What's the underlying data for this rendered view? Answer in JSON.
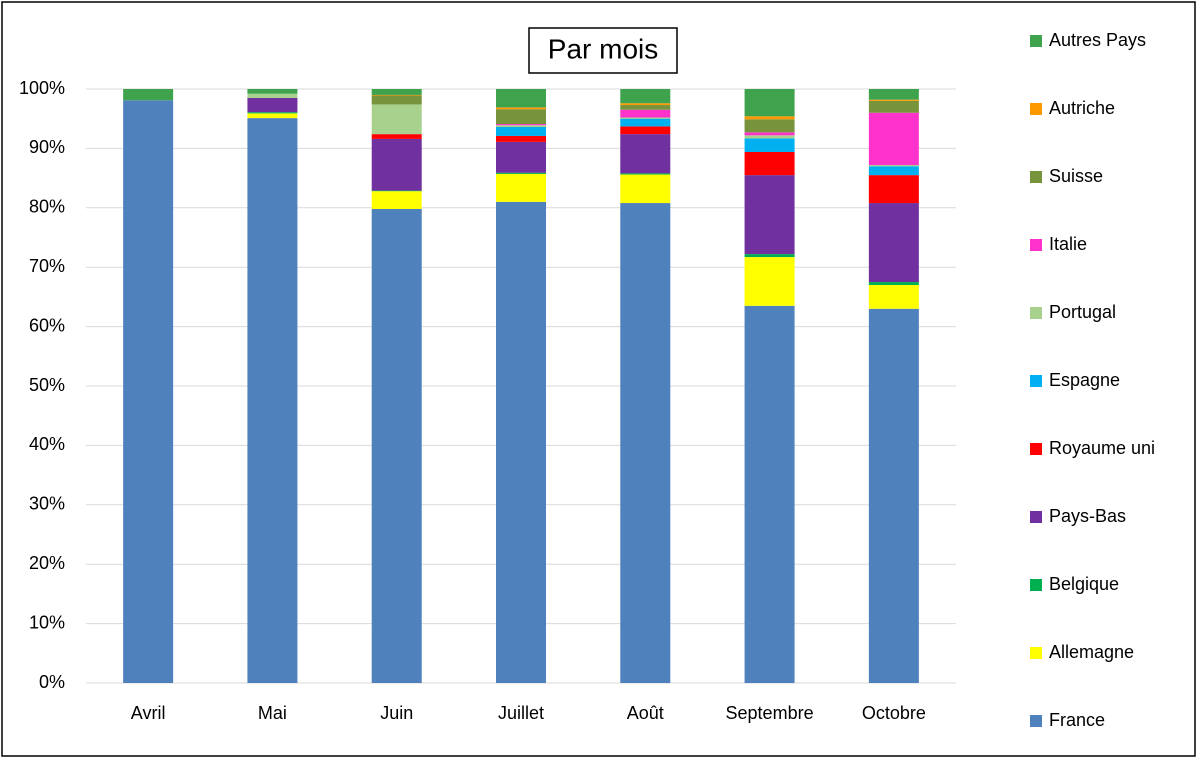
{
  "chart_data": {
    "type": "stacked_bar",
    "title": "Par mois",
    "categories": [
      "Avril",
      "Mai",
      "Juin",
      "Juillet",
      "Août",
      "Septembre",
      "Octobre"
    ],
    "series": [
      {
        "name": "France",
        "color": "#4f81bd",
        "values": [
          98.1,
          95.1,
          79.8,
          81.0,
          80.8,
          63.5,
          63.0
        ]
      },
      {
        "name": "Allemagne",
        "color": "#ffff00",
        "values": [
          0,
          0.8,
          3.0,
          4.7,
          4.8,
          8.2,
          4.0
        ]
      },
      {
        "name": "Belgique",
        "color": "#00b050",
        "values": [
          0,
          0.2,
          0.1,
          0.2,
          0.2,
          0.5,
          0.5
        ]
      },
      {
        "name": "Pays-Bas",
        "color": "#7030a0",
        "values": [
          0,
          2.4,
          8.7,
          5.2,
          6.6,
          13.3,
          13.3
        ]
      },
      {
        "name": "Royaume uni",
        "color": "#ff0000",
        "values": [
          0,
          0,
          0.8,
          1.0,
          1.3,
          3.9,
          4.7
        ]
      },
      {
        "name": "Espagne",
        "color": "#00b0f0",
        "values": [
          0,
          0,
          0,
          1.5,
          1.3,
          2.3,
          1.5
        ]
      },
      {
        "name": "Portugal",
        "color": "#a9d18e",
        "values": [
          0,
          0.7,
          5.0,
          0.3,
          0.2,
          0.5,
          0.2
        ]
      },
      {
        "name": "Italie",
        "color": "#ff33cc",
        "values": [
          0,
          0,
          0,
          0.2,
          1.3,
          0.5,
          8.8
        ]
      },
      {
        "name": "Suisse",
        "color": "#77933c",
        "values": [
          0,
          0,
          1.5,
          2.5,
          0.8,
          2.2,
          2.0
        ]
      },
      {
        "name": "Autriche",
        "color": "#ff9900",
        "values": [
          0,
          0,
          0.1,
          0.3,
          0.3,
          0.5,
          0.2
        ]
      },
      {
        "name": "Autres Pays",
        "color": "#3fa34d",
        "values": [
          1.9,
          0.8,
          1.0,
          3.1,
          2.4,
          4.6,
          1.8
        ]
      }
    ],
    "ylim": [
      0,
      100
    ],
    "yticks": [
      {
        "value": 0,
        "label": "0%"
      },
      {
        "value": 10,
        "label": "10%"
      },
      {
        "value": 20,
        "label": "20%"
      },
      {
        "value": 30,
        "label": "30%"
      },
      {
        "value": 40,
        "label": "40%"
      },
      {
        "value": 50,
        "label": "50%"
      },
      {
        "value": 60,
        "label": "60%"
      },
      {
        "value": 70,
        "label": "70%"
      },
      {
        "value": 80,
        "label": "80%"
      },
      {
        "value": 90,
        "label": "90%"
      },
      {
        "value": 100,
        "label": "100%"
      }
    ],
    "grid": true,
    "legend": "right"
  }
}
